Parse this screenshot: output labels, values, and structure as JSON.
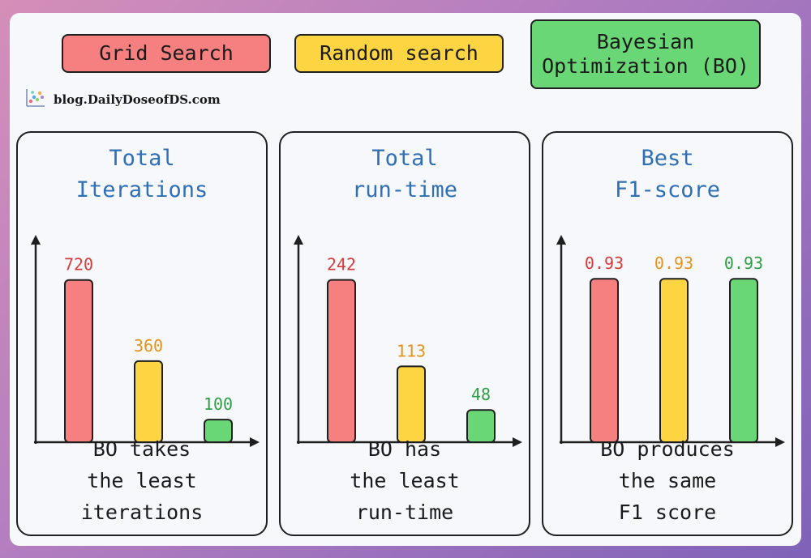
{
  "legend": {
    "grid": {
      "label": "Grid Search",
      "color": "#f67f80"
    },
    "random": {
      "label": "Random search",
      "color": "#fdd442"
    },
    "bo": {
      "label_line1": "Bayesian",
      "label_line2": "Optimization (BO)",
      "color": "#6ad776"
    }
  },
  "brand": {
    "text": "blog.DailyDoseofDS.com",
    "icon": "scatter-plot-logo-icon"
  },
  "colors": {
    "axis": "#1f1f1f",
    "title": "#2f6fb5",
    "value_labels": [
      "#d63b3b",
      "#e8921a",
      "#2ea043"
    ]
  },
  "panels": [
    {
      "title_line1": "Total",
      "title_line2": "Iterations",
      "caption_line1": "BO takes",
      "caption_line2": "the least",
      "caption_line3": "iterations"
    },
    {
      "title_line1": "Total",
      "title_line2": "run-time",
      "caption_line1": "BO has",
      "caption_line2": "the least",
      "caption_line3": "run-time"
    },
    {
      "title_line1": "Best",
      "title_line2": "F1-score",
      "caption_line1": "BO produces",
      "caption_line2": "the same",
      "caption_line3": "F1 score"
    }
  ],
  "chart_data": [
    {
      "type": "bar",
      "title": "Total Iterations",
      "categories": [
        "Grid Search",
        "Random search",
        "Bayesian Optimization (BO)"
      ],
      "values": [
        720,
        360,
        100
      ],
      "value_labels": [
        "720",
        "360",
        "100"
      ],
      "ylim": [
        0,
        780
      ],
      "grid": false
    },
    {
      "type": "bar",
      "title": "Total run-time",
      "categories": [
        "Grid Search",
        "Random search",
        "Bayesian Optimization (BO)"
      ],
      "values": [
        242,
        113,
        48
      ],
      "value_labels": [
        "242",
        "113",
        "48"
      ],
      "ylim": [
        0,
        262
      ],
      "grid": false
    },
    {
      "type": "bar",
      "title": "Best F1-score",
      "categories": [
        "Grid Search",
        "Random search",
        "Bayesian Optimization (BO)"
      ],
      "values": [
        0.93,
        0.93,
        0.93
      ],
      "value_labels": [
        "0.93",
        "0.93",
        "0.93"
      ],
      "ylim": [
        0,
        1.0
      ],
      "grid": false
    }
  ]
}
